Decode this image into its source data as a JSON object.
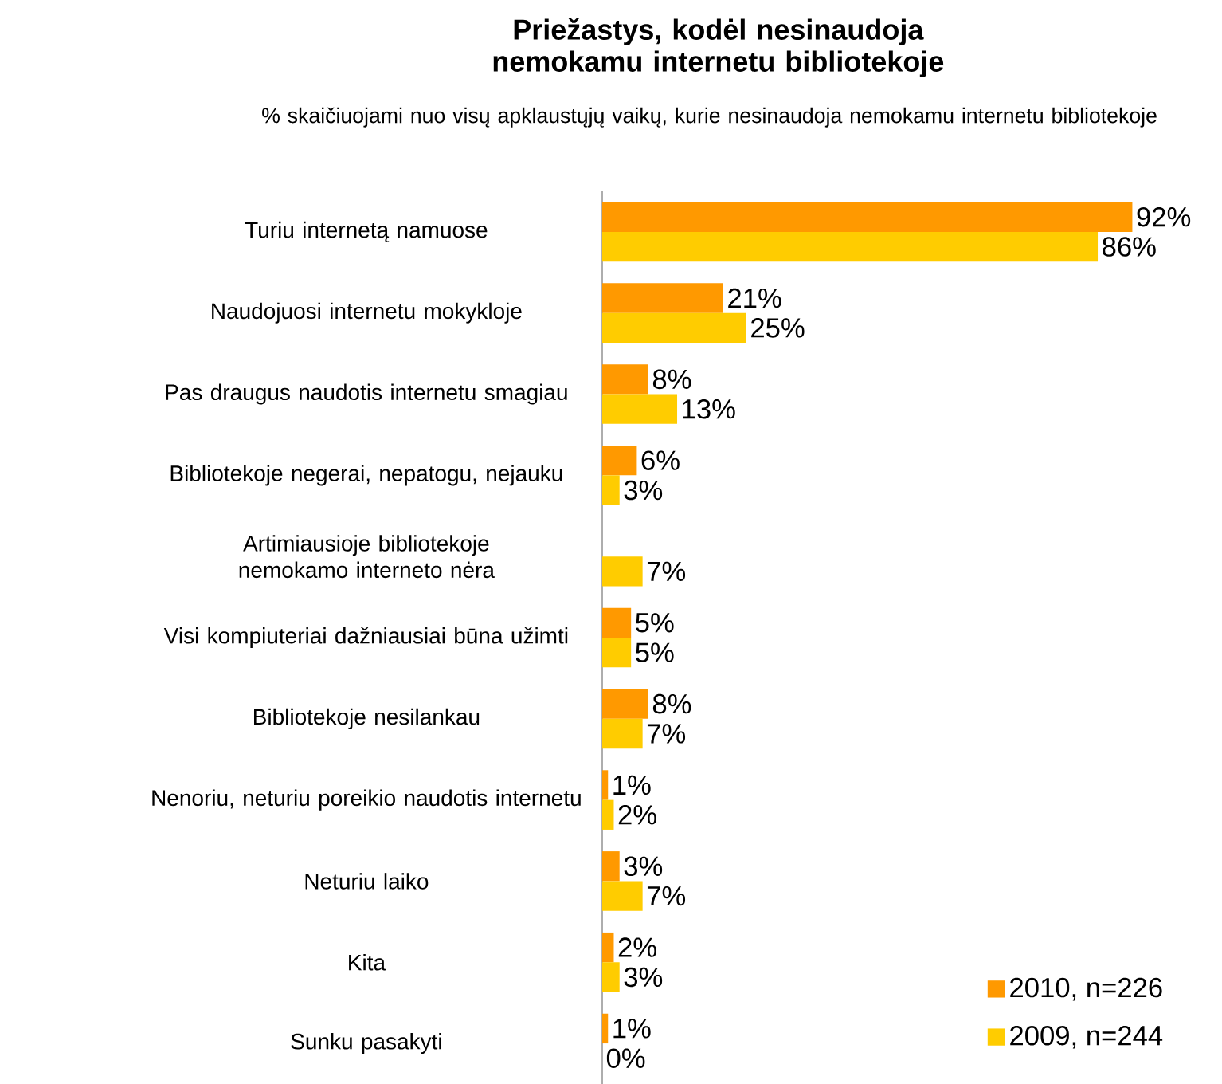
{
  "chart_data": {
    "type": "bar",
    "orientation": "horizontal",
    "title": "Priežastys, kodėl nesinaudoja nemokamu internetu bibliotekoje",
    "subtitle": "% skaičiuojami nuo visų apklaustųjų vaikų, kurie nesinaudoja nemokamu internetu bibliotekoje",
    "categories": [
      "Turiu internetą namuose",
      "Naudojuosi internetu mokykloje",
      "Pas draugus naudotis internetu smagiau",
      "Bibliotekoje negerai, nepatogu, nejauku",
      "Artimiausioje bibliotekoje nemokamo interneto nėra",
      "Visi kompiuteriai dažniausiai būna užimti",
      "Bibliotekoje nesilankau",
      "Nenoriu, neturiu poreikio naudotis internetu",
      "Neturiu laiko",
      "Kita",
      "Sunku pasakyti"
    ],
    "series": [
      {
        "name": "2010, n=226",
        "color": "#ff9900",
        "values": [
          92,
          21,
          8,
          6,
          null,
          5,
          8,
          1,
          3,
          2,
          1
        ],
        "value_labels": [
          "92%",
          "21%",
          "8%",
          "6%",
          null,
          "5%",
          "8%",
          "1%",
          "3%",
          "2%",
          "1%"
        ]
      },
      {
        "name": "2009, n=244",
        "color": "#ffcc00",
        "values": [
          86,
          25,
          13,
          3,
          7,
          5,
          7,
          2,
          7,
          3,
          0
        ],
        "value_labels": [
          "86%",
          "25%",
          "13%",
          "3%",
          "7%",
          "5%",
          "7%",
          "2%",
          "7%",
          "3%",
          "0%"
        ]
      }
    ],
    "legend": "bottom right"
  }
}
